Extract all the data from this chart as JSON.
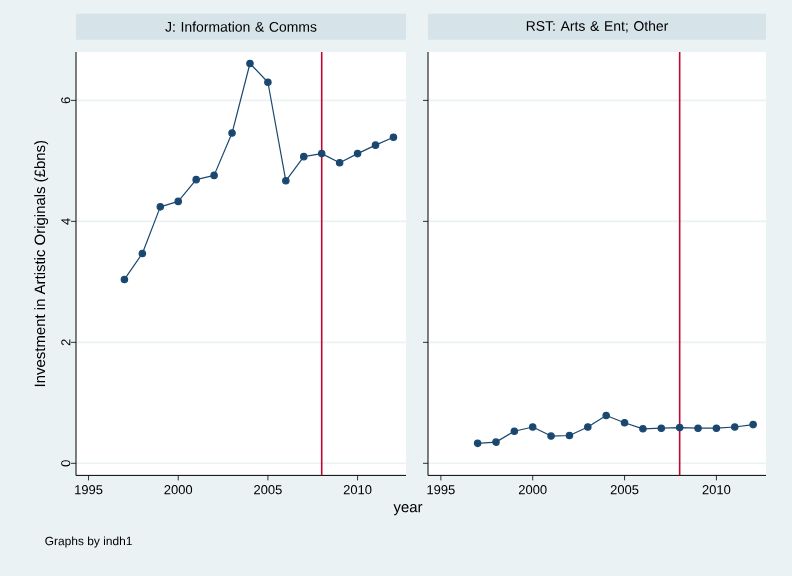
{
  "chart_data": [
    {
      "type": "line",
      "title": "J: Information & Comms",
      "ylabel": "Investment in Artistic Originals (£bns)",
      "annotations": [
        "Graphs by indh1"
      ],
      "x": [
        1997,
        1998,
        1999,
        2000,
        2001,
        2002,
        2003,
        2004,
        2005,
        2006,
        2007,
        2008,
        2009,
        2010,
        2011,
        2012
      ],
      "series": [
        {
          "color": "#1a476f",
          "values": [
            3.04,
            3.47,
            4.24,
            4.33,
            4.69,
            4.76,
            5.46,
            6.61,
            6.3,
            4.67,
            5.07,
            5.12,
            4.97,
            5.12,
            5.26,
            5.39
          ]
        }
      ],
      "xlim": [
        1994.3,
        2012.7
      ],
      "ylim": [
        -0.2,
        6.8
      ],
      "xticks": [
        1995,
        2000,
        2005,
        2010
      ],
      "yticks": [
        0,
        2,
        4,
        6
      ],
      "grid": "y",
      "marker": "circle",
      "ref_lines": [
        {
          "axis": "x",
          "value": 2008,
          "color": "#c10534"
        }
      ]
    },
    {
      "type": "line",
      "title": "RST: Arts & Ent; Other",
      "xlabel": "year",
      "tick_labels": "x",
      "x": [
        1997,
        1998,
        1999,
        2000,
        2001,
        2002,
        2003,
        2004,
        2005,
        2006,
        2007,
        2008,
        2009,
        2010,
        2011,
        2012
      ],
      "series": [
        {
          "color": "#1a476f",
          "values": [
            0.33,
            0.35,
            0.53,
            0.6,
            0.45,
            0.46,
            0.6,
            0.79,
            0.67,
            0.57,
            0.58,
            0.59,
            0.58,
            0.58,
            0.6,
            0.64
          ]
        }
      ],
      "xlim": [
        1994.3,
        2012.7
      ],
      "ylim": [
        -0.2,
        6.8
      ],
      "xticks": [
        1995,
        2000,
        2005,
        2010
      ],
      "yticks": [
        0,
        2,
        4,
        6
      ],
      "grid": "y",
      "marker": "circle",
      "ref_lines": [
        {
          "axis": "x",
          "value": 2008,
          "color": "#c10534"
        }
      ]
    }
  ]
}
